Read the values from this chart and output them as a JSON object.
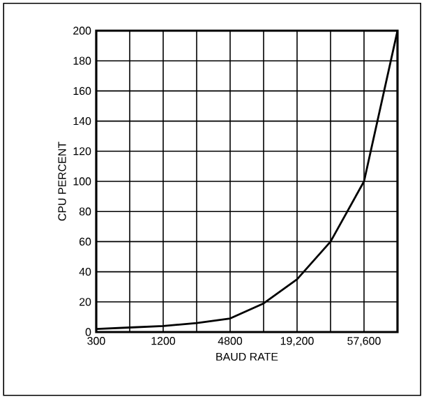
{
  "chart_data": {
    "type": "line",
    "xlabel": "BAUD RATE",
    "ylabel": "CPU PERCENT",
    "categories": [
      "300",
      null,
      "1200",
      null,
      "4800",
      null,
      "19,200",
      null,
      "57,600",
      null
    ],
    "values": [
      2,
      3,
      4,
      6,
      9,
      19,
      35,
      60,
      100,
      200
    ],
    "color": "#000000",
    "ylim": [
      0,
      200
    ],
    "yticks": [
      0,
      20,
      40,
      60,
      80,
      100,
      120,
      140,
      160,
      180,
      200
    ],
    "grid": true
  }
}
